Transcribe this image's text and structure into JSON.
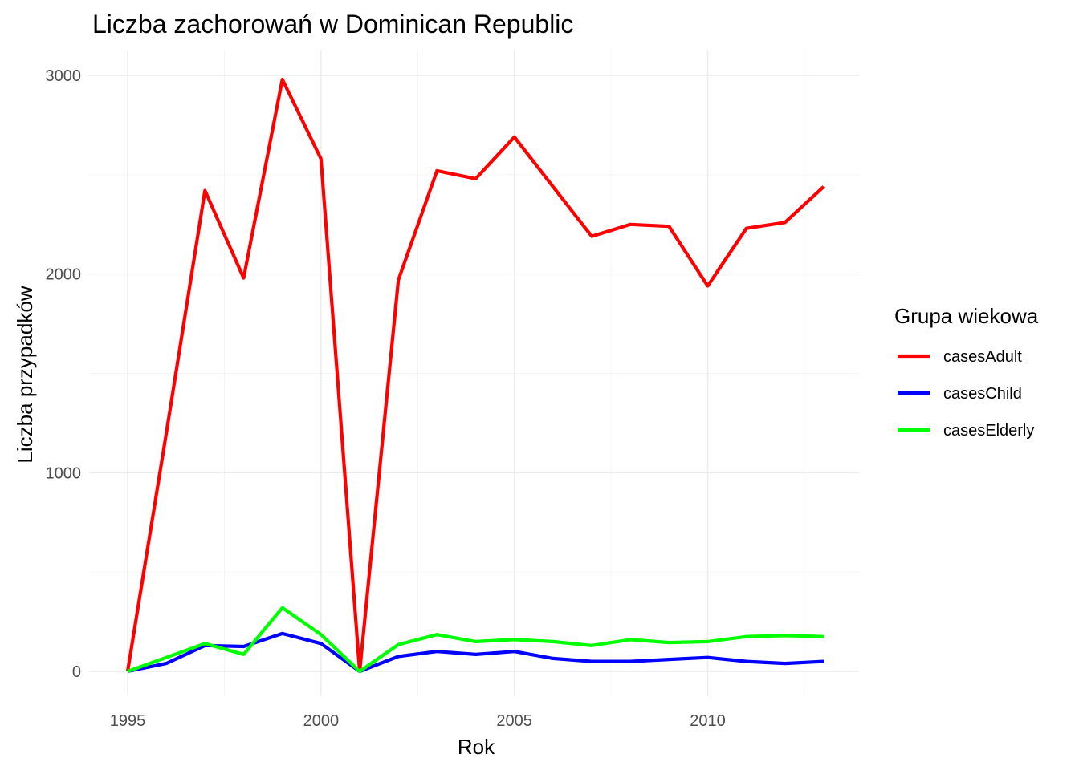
{
  "chart_data": {
    "type": "line",
    "title": "Liczba zachorowań w Dominican Republic",
    "xlabel": "Rok",
    "ylabel": "Liczba przypadków",
    "x": [
      1995,
      1996,
      1997,
      1998,
      1999,
      2000,
      2001,
      2002,
      2003,
      2004,
      2005,
      2006,
      2007,
      2008,
      2009,
      2010,
      2011,
      2012,
      2013
    ],
    "xlim": [
      1995,
      2013
    ],
    "ylim": [
      0,
      3000
    ],
    "x_ticks": [
      "1995",
      "2000",
      "2005",
      "2010"
    ],
    "y_ticks": [
      "0",
      "1000",
      "2000",
      "3000"
    ],
    "grid": true,
    "legend": {
      "title": "Grupa wiekowa",
      "position": "right"
    },
    "series": [
      {
        "name": "casesAdult",
        "color": "#ff0000",
        "values": [
          0,
          1200,
          2420,
          1980,
          2980,
          2580,
          0,
          1970,
          2520,
          2480,
          2690,
          2440,
          2190,
          2250,
          2240,
          1940,
          2230,
          2260,
          2440
        ]
      },
      {
        "name": "casesChild",
        "color": "#0000ff",
        "values": [
          0,
          40,
          130,
          125,
          190,
          140,
          0,
          75,
          100,
          85,
          100,
          65,
          50,
          50,
          60,
          70,
          50,
          40,
          50
        ]
      },
      {
        "name": "casesElderly",
        "color": "#00ff00",
        "values": [
          0,
          70,
          140,
          85,
          320,
          185,
          0,
          135,
          185,
          150,
          160,
          150,
          130,
          160,
          145,
          150,
          175,
          180,
          175
        ]
      }
    ]
  }
}
